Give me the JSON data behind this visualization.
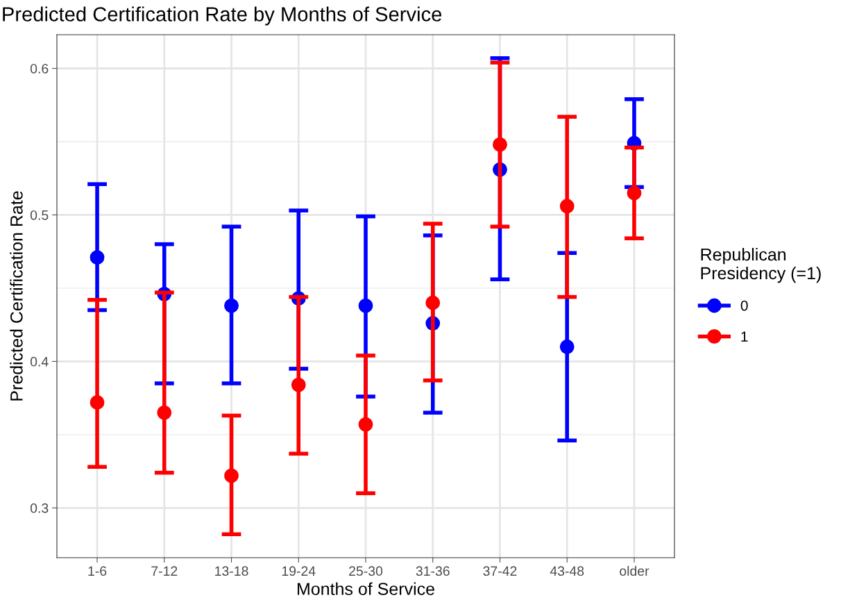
{
  "chart_data": {
    "type": "scatter",
    "title": "Predicted Certification Rate by Months of Service",
    "xlabel": "Months of Service",
    "ylabel": "Predicted Certification Rate",
    "legend_title": "Republican\nPresidency (=1)",
    "categories": [
      "1-6",
      "7-12",
      "13-18",
      "19-24",
      "25-30",
      "31-36",
      "37-42",
      "43-48",
      "older"
    ],
    "series": [
      {
        "name": "0",
        "color": "#0000ff",
        "values": [
          0.471,
          0.446,
          0.438,
          0.443,
          0.438,
          0.426,
          0.531,
          0.41,
          0.549
        ],
        "errors": [
          [
            0.435,
            0.521
          ],
          [
            0.385,
            0.48
          ],
          [
            0.385,
            0.492
          ],
          [
            0.395,
            0.503
          ],
          [
            0.376,
            0.499
          ],
          [
            0.365,
            0.486
          ],
          [
            0.456,
            0.607
          ],
          [
            0.346,
            0.474
          ],
          [
            0.519,
            0.579
          ]
        ]
      },
      {
        "name": "1",
        "color": "#ff0000",
        "values": [
          0.372,
          0.365,
          0.322,
          0.384,
          0.357,
          0.44,
          0.548,
          0.506,
          0.515
        ],
        "errors": [
          [
            0.328,
            0.442
          ],
          [
            0.324,
            0.447
          ],
          [
            0.282,
            0.363
          ],
          [
            0.337,
            0.444
          ],
          [
            0.31,
            0.404
          ],
          [
            0.387,
            0.494
          ],
          [
            0.492,
            0.604
          ],
          [
            0.444,
            0.567
          ],
          [
            0.484,
            0.546
          ]
        ]
      }
    ],
    "ylim": [
      0.266,
      0.623
    ],
    "yticks": [
      0.3,
      0.4,
      0.5,
      0.6
    ],
    "grid": true,
    "legend": "right",
    "marker": "circle"
  }
}
